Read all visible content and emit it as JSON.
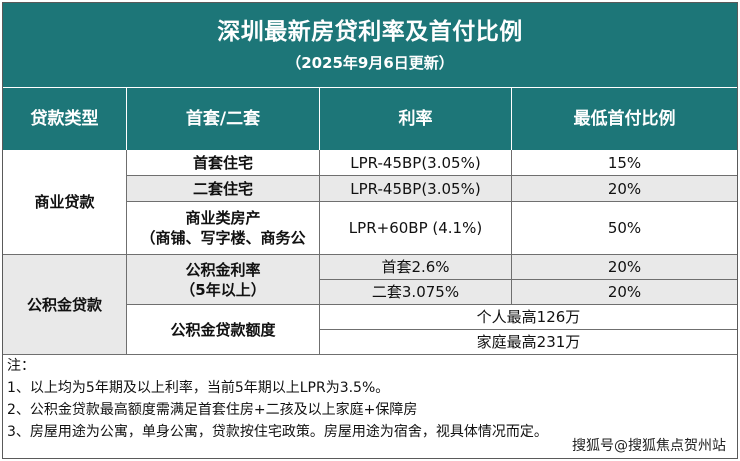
{
  "title": "深圳最新房贷利率及首付比例",
  "subtitle": "（2025年9月6日更新）",
  "headers": [
    "贷款类型",
    "首套/二套",
    "利率",
    "最低首付比例"
  ],
  "groups": {
    "commercial": "商业贷款",
    "provident": "公积金贷款"
  },
  "rows": {
    "r1": {
      "kind": "首套住宅",
      "rate": "LPR-45BP(3.05%)",
      "down": "15%"
    },
    "r2": {
      "kind": "二套住宅",
      "rate": "LPR-45BP(3.05%)",
      "down": "20%"
    },
    "r3": {
      "kind_line1": "商业类房产",
      "kind_line2": "（商铺、写字楼、商务公",
      "rate": "LPR+60BP (4.1%)",
      "down": "50%"
    },
    "r4": {
      "kind_line1": "公积金利率",
      "kind_line2": "（5年以上）",
      "rate_a": "首套2.6%",
      "down_a": "20%",
      "rate_b": "二套3.075%",
      "down_b": "20%"
    },
    "r5": {
      "kind": "公积金贷款额度",
      "limit_a": "个人最高126万",
      "limit_b": "家庭最高231万"
    }
  },
  "notes": {
    "label": "注：",
    "line1": "1、以上均为5年期及以上利率，当前5年期以上LPR为3.5%。",
    "line2": "2、公积金贷款最高额度需满足首套住房+二孩及以上家庭+保障房",
    "line3": "3、房屋用途为公寓，单身公寓，贷款按住宅政策。房屋用途为宿舍，视具体情况而定。"
  },
  "watermark": "搜狐号@搜狐焦点贺州站",
  "colors": {
    "header_bg": "#1d7678",
    "row_alt": "#e9e9e9"
  }
}
